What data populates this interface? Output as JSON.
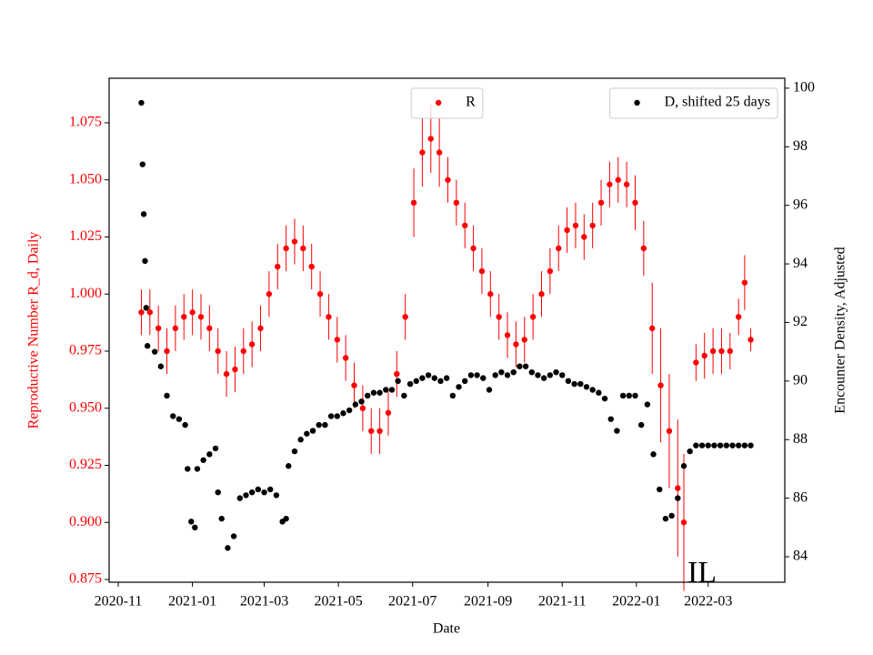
{
  "chart_data": {
    "type": "scatter",
    "x_label": "Date",
    "y_label": "Reproductive Number R_d, Daily",
    "y2_label": "Encounter Density, Adjusted",
    "annotation": "IL",
    "xlim": [
      -7.5,
      548
    ],
    "xticks": [
      {
        "value": 0,
        "label": "2020-11"
      },
      {
        "value": 61,
        "label": "2021-01"
      },
      {
        "value": 120,
        "label": "2021-03"
      },
      {
        "value": 181,
        "label": "2021-05"
      },
      {
        "value": 242,
        "label": "2021-07"
      },
      {
        "value": 304,
        "label": "2021-09"
      },
      {
        "value": 365,
        "label": "2021-11"
      },
      {
        "value": 426,
        "label": "2022-01"
      },
      {
        "value": 485,
        "label": "2022-03"
      }
    ],
    "ylim": [
      0.8738,
      1.0945
    ],
    "yticks": [
      0.875,
      {
        "value": 0.9,
        "label": "0.900"
      },
      0.925,
      {
        "value": 0.95,
        "label": "0.950"
      },
      0.975,
      {
        "value": 1.0,
        "label": "1.000"
      },
      1.025,
      {
        "value": 1.05,
        "label": "1.050"
      },
      1.075
    ],
    "y2lim": [
      83.13,
      100.34
    ],
    "y2ticks": [
      84,
      86,
      88,
      90,
      92,
      94,
      96,
      98,
      100
    ],
    "ylabel_color": "#ff0000",
    "series": [
      {
        "name": "R",
        "color": "#ff0000",
        "legend": "upper center",
        "x": [
          19,
          26,
          33,
          40,
          47,
          54,
          61,
          68,
          75,
          82,
          89,
          96,
          103,
          110,
          117,
          124,
          131,
          138,
          145,
          152,
          159,
          166,
          173,
          180,
          187,
          194,
          201,
          208,
          215,
          222,
          229,
          236,
          243,
          250,
          257,
          264,
          271,
          278,
          285,
          292,
          299,
          306,
          313,
          320,
          327,
          334,
          341,
          348,
          355,
          362,
          369,
          376,
          383,
          390,
          397,
          404,
          411,
          418,
          425,
          432,
          439,
          446,
          453,
          460,
          465,
          475,
          482,
          489,
          496,
          503,
          510,
          515,
          520
        ],
        "values": [
          0.992,
          0.992,
          0.985,
          0.975,
          0.985,
          0.99,
          0.992,
          0.99,
          0.985,
          0.975,
          0.965,
          0.967,
          0.975,
          0.978,
          0.985,
          1.0,
          1.012,
          1.02,
          1.023,
          1.02,
          1.012,
          1.0,
          0.99,
          0.98,
          0.972,
          0.96,
          0.95,
          0.94,
          0.94,
          0.948,
          0.965,
          0.99,
          1.04,
          1.062,
          1.068,
          1.062,
          1.05,
          1.04,
          1.03,
          1.02,
          1.01,
          1.0,
          0.99,
          0.982,
          0.978,
          0.98,
          0.99,
          1.0,
          1.01,
          1.02,
          1.028,
          1.03,
          1.025,
          1.03,
          1.04,
          1.048,
          1.05,
          1.048,
          1.04,
          1.02,
          0.985,
          0.96,
          0.94,
          0.915,
          0.9,
          0.97,
          0.973,
          0.975,
          0.975,
          0.975,
          0.99,
          1.005,
          0.98
        ],
        "errors": [
          0.01,
          0.01,
          0.01,
          0.01,
          0.01,
          0.01,
          0.01,
          0.01,
          0.01,
          0.01,
          0.01,
          0.01,
          0.01,
          0.01,
          0.01,
          0.01,
          0.01,
          0.01,
          0.01,
          0.01,
          0.01,
          0.01,
          0.01,
          0.01,
          0.01,
          0.01,
          0.01,
          0.01,
          0.01,
          0.01,
          0.01,
          0.01,
          0.015,
          0.015,
          0.015,
          0.015,
          0.01,
          0.01,
          0.01,
          0.01,
          0.01,
          0.01,
          0.01,
          0.01,
          0.01,
          0.01,
          0.01,
          0.01,
          0.01,
          0.01,
          0.01,
          0.01,
          0.01,
          0.01,
          0.01,
          0.01,
          0.01,
          0.01,
          0.012,
          0.012,
          0.02,
          0.025,
          0.025,
          0.03,
          0.03,
          0.008,
          0.01,
          0.01,
          0.01,
          0.008,
          0.008,
          0.012,
          0.005
        ]
      },
      {
        "name": "D, shifted 25 days",
        "color": "#000000",
        "axis": "y2",
        "legend": "upper right",
        "x": [
          19,
          20,
          21,
          22,
          23,
          24,
          30,
          35,
          40,
          45,
          50,
          55,
          57,
          60,
          63,
          65,
          70,
          75,
          80,
          82,
          85,
          90,
          95,
          100,
          105,
          110,
          115,
          120,
          125,
          130,
          135,
          138,
          140,
          145,
          150,
          155,
          160,
          165,
          170,
          175,
          180,
          185,
          190,
          195,
          200,
          205,
          210,
          215,
          220,
          225,
          230,
          235,
          240,
          245,
          250,
          255,
          260,
          265,
          270,
          275,
          280,
          285,
          290,
          295,
          300,
          305,
          310,
          315,
          320,
          325,
          330,
          335,
          340,
          345,
          350,
          355,
          360,
          365,
          370,
          375,
          380,
          385,
          390,
          395,
          400,
          405,
          410,
          415,
          420,
          425,
          430,
          435,
          440,
          445,
          450,
          455,
          460,
          465,
          470,
          475,
          480,
          485,
          490,
          495,
          500,
          505,
          510,
          515,
          520
        ],
        "values": [
          99.5,
          97.4,
          95.7,
          94.1,
          92.5,
          91.2,
          91,
          90.5,
          89.5,
          88.8,
          88.7,
          88.5,
          87,
          85.2,
          85,
          87,
          87.3,
          87.5,
          87.7,
          86.2,
          85.3,
          84.3,
          84.7,
          86,
          86.1,
          86.2,
          86.3,
          86.2,
          86.3,
          86.1,
          85.2,
          85.3,
          87.1,
          87.6,
          88,
          88.2,
          88.3,
          88.5,
          88.5,
          88.8,
          88.8,
          88.9,
          89,
          89.2,
          89.3,
          89.5,
          89.6,
          89.6,
          89.7,
          89.7,
          90,
          89.5,
          89.9,
          90,
          90.1,
          90.2,
          90.1,
          90,
          90.1,
          89.5,
          89.8,
          90,
          90.2,
          90.2,
          90.1,
          89.7,
          90.2,
          90.3,
          90.2,
          90.3,
          90.5,
          90.5,
          90.3,
          90.2,
          90.1,
          90.2,
          90.3,
          90.2,
          90,
          89.9,
          89.9,
          89.8,
          89.7,
          89.6,
          89.4,
          88.7,
          88.3,
          89.5,
          89.5,
          89.5,
          88.5,
          89.2,
          87.5,
          86.3,
          85.3,
          85.4,
          86,
          87.1,
          87.6,
          87.8,
          87.8,
          87.8,
          87.8,
          87.8,
          87.8,
          87.8,
          87.8,
          87.8,
          87.8
        ]
      }
    ]
  }
}
